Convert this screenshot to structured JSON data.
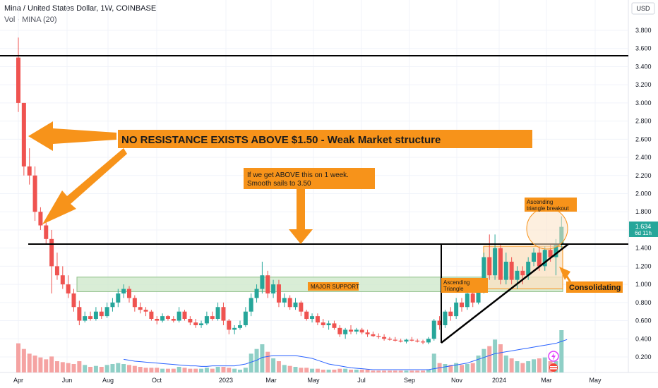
{
  "header": {
    "title": "Mina / United States Dollar, 1W, COINBASE",
    "volume": "Vol · MINA (20)"
  },
  "currency_label": "USD",
  "price_badge": {
    "price": "1.634",
    "countdown": "6d 11h"
  },
  "colors": {
    "up": "#26a69a",
    "down": "#ef5350",
    "vol_up": "#8fcfc6",
    "vol_down": "#f5a3a2",
    "ma": "#2962ff",
    "annotation": "#f7931a",
    "support_fill": "#cfe9cc",
    "triangle_fill": "#fbe0c0"
  },
  "chart_data": {
    "type": "candlestick",
    "symbol": "MINA/USD",
    "interval": "1W",
    "ylim": [
      0.0,
      3.9
    ],
    "y_ticks": [
      "0.200",
      "0.400",
      "0.600",
      "0.800",
      "1.000",
      "1.200",
      "1.400",
      "1.600",
      "1.800",
      "2.000",
      "2.200",
      "2.400",
      "2.600",
      "2.800",
      "3.000",
      "3.200",
      "3.400",
      "3.600",
      "3.800"
    ],
    "x_ticks": [
      "Apr",
      "Jun",
      "Aug",
      "Oct",
      "2023",
      "Mar",
      "May",
      "Jul",
      "Sep",
      "Nov",
      "2024",
      "Mar",
      "May"
    ],
    "candles": [
      [
        3.5,
        3.72,
        2.9,
        3.0,
        0.31
      ],
      [
        3.0,
        3.0,
        2.2,
        2.3,
        0.25
      ],
      [
        2.3,
        2.5,
        2.1,
        2.2,
        0.2
      ],
      [
        2.2,
        2.3,
        1.7,
        1.8,
        0.18
      ],
      [
        1.8,
        1.85,
        1.6,
        1.65,
        0.16
      ],
      [
        1.65,
        1.7,
        1.45,
        1.5,
        0.14
      ],
      [
        1.5,
        1.6,
        0.9,
        1.2,
        0.17
      ],
      [
        1.2,
        1.35,
        1.05,
        1.1,
        0.12
      ],
      [
        1.1,
        1.2,
        0.95,
        1.0,
        0.11
      ],
      [
        1.0,
        1.1,
        0.85,
        0.9,
        0.1
      ],
      [
        0.9,
        0.95,
        0.7,
        0.75,
        0.09
      ],
      [
        0.75,
        0.82,
        0.55,
        0.6,
        0.12
      ],
      [
        0.6,
        0.7,
        0.58,
        0.65,
        0.08
      ],
      [
        0.65,
        0.7,
        0.6,
        0.62,
        0.06
      ],
      [
        0.62,
        0.75,
        0.6,
        0.7,
        0.07
      ],
      [
        0.7,
        0.75,
        0.62,
        0.65,
        0.06
      ],
      [
        0.65,
        0.8,
        0.63,
        0.75,
        0.08
      ],
      [
        0.75,
        0.85,
        0.7,
        0.8,
        0.09
      ],
      [
        0.8,
        0.95,
        0.75,
        0.9,
        0.1
      ],
      [
        0.9,
        1.0,
        0.85,
        0.95,
        0.09
      ],
      [
        0.95,
        0.98,
        0.8,
        0.85,
        0.08
      ],
      [
        0.85,
        0.88,
        0.7,
        0.75,
        0.07
      ],
      [
        0.75,
        0.8,
        0.68,
        0.72,
        0.06
      ],
      [
        0.72,
        0.75,
        0.65,
        0.7,
        0.05
      ],
      [
        0.7,
        0.72,
        0.6,
        0.62,
        0.05
      ],
      [
        0.62,
        0.65,
        0.56,
        0.6,
        0.05
      ],
      [
        0.6,
        0.68,
        0.58,
        0.65,
        0.04
      ],
      [
        0.65,
        0.66,
        0.6,
        0.62,
        0.04
      ],
      [
        0.62,
        0.65,
        0.58,
        0.6,
        0.04
      ],
      [
        0.6,
        0.75,
        0.58,
        0.7,
        0.06
      ],
      [
        0.7,
        0.72,
        0.6,
        0.62,
        0.05
      ],
      [
        0.62,
        0.65,
        0.55,
        0.58,
        0.04
      ],
      [
        0.58,
        0.62,
        0.52,
        0.55,
        0.04
      ],
      [
        0.55,
        0.6,
        0.52,
        0.57,
        0.04
      ],
      [
        0.57,
        0.7,
        0.55,
        0.65,
        0.05
      ],
      [
        0.65,
        0.7,
        0.6,
        0.62,
        0.04
      ],
      [
        0.62,
        0.8,
        0.6,
        0.75,
        0.06
      ],
      [
        0.75,
        0.8,
        0.55,
        0.6,
        0.06
      ],
      [
        0.6,
        0.62,
        0.45,
        0.5,
        0.05
      ],
      [
        0.5,
        0.55,
        0.45,
        0.52,
        0.04
      ],
      [
        0.52,
        0.6,
        0.5,
        0.55,
        0.03
      ],
      [
        0.55,
        0.75,
        0.53,
        0.7,
        0.05
      ],
      [
        0.7,
        0.9,
        0.65,
        0.85,
        0.2
      ],
      [
        0.85,
        1.0,
        0.8,
        0.95,
        0.25
      ],
      [
        0.95,
        1.25,
        0.9,
        1.1,
        0.3
      ],
      [
        1.1,
        1.15,
        0.85,
        0.9,
        0.22
      ],
      [
        0.9,
        1.05,
        0.85,
        1.0,
        0.15
      ],
      [
        1.0,
        1.05,
        0.75,
        0.8,
        0.12
      ],
      [
        0.8,
        0.9,
        0.75,
        0.85,
        0.08
      ],
      [
        0.85,
        0.88,
        0.72,
        0.75,
        0.07
      ],
      [
        0.75,
        0.85,
        0.72,
        0.8,
        0.06
      ],
      [
        0.8,
        0.82,
        0.65,
        0.7,
        0.05
      ],
      [
        0.7,
        0.72,
        0.6,
        0.62,
        0.05
      ],
      [
        0.62,
        0.68,
        0.58,
        0.65,
        0.04
      ],
      [
        0.65,
        0.68,
        0.55,
        0.58,
        0.04
      ],
      [
        0.58,
        0.62,
        0.52,
        0.55,
        0.03
      ],
      [
        0.55,
        0.6,
        0.5,
        0.57,
        0.03
      ],
      [
        0.57,
        0.6,
        0.5,
        0.52,
        0.03
      ],
      [
        0.52,
        0.55,
        0.42,
        0.45,
        0.04
      ],
      [
        0.45,
        0.52,
        0.4,
        0.5,
        0.04
      ],
      [
        0.5,
        0.55,
        0.45,
        0.48,
        0.03
      ],
      [
        0.48,
        0.52,
        0.45,
        0.5,
        0.03
      ],
      [
        0.5,
        0.52,
        0.45,
        0.47,
        0.03
      ],
      [
        0.47,
        0.5,
        0.42,
        0.45,
        0.03
      ],
      [
        0.45,
        0.48,
        0.42,
        0.43,
        0.02
      ],
      [
        0.43,
        0.46,
        0.4,
        0.42,
        0.02
      ],
      [
        0.42,
        0.45,
        0.38,
        0.4,
        0.02
      ],
      [
        0.4,
        0.42,
        0.38,
        0.39,
        0.02
      ],
      [
        0.39,
        0.42,
        0.37,
        0.38,
        0.02
      ],
      [
        0.38,
        0.4,
        0.36,
        0.37,
        0.02
      ],
      [
        0.37,
        0.4,
        0.35,
        0.39,
        0.02
      ],
      [
        0.39,
        0.42,
        0.37,
        0.38,
        0.02
      ],
      [
        0.38,
        0.4,
        0.36,
        0.37,
        0.02
      ],
      [
        0.37,
        0.39,
        0.34,
        0.36,
        0.02
      ],
      [
        0.36,
        0.42,
        0.34,
        0.4,
        0.03
      ],
      [
        0.4,
        0.62,
        0.38,
        0.6,
        0.2
      ],
      [
        0.6,
        0.65,
        0.5,
        0.55,
        0.1
      ],
      [
        0.55,
        0.72,
        0.52,
        0.7,
        0.09
      ],
      [
        0.7,
        0.75,
        0.6,
        0.65,
        0.08
      ],
      [
        0.65,
        0.85,
        0.62,
        0.8,
        0.1
      ],
      [
        0.8,
        0.85,
        0.7,
        0.75,
        0.08
      ],
      [
        0.75,
        0.95,
        0.72,
        0.9,
        0.09
      ],
      [
        0.9,
        0.92,
        0.75,
        0.8,
        0.1
      ],
      [
        0.8,
        1.0,
        0.78,
        0.95,
        0.18
      ],
      [
        0.95,
        1.35,
        0.9,
        1.3,
        0.25
      ],
      [
        1.3,
        1.55,
        1.05,
        1.1,
        0.28
      ],
      [
        1.1,
        1.55,
        1.05,
        1.4,
        0.35
      ],
      [
        1.4,
        1.45,
        1.0,
        1.05,
        0.3
      ],
      [
        1.05,
        1.35,
        1.0,
        1.25,
        0.18
      ],
      [
        1.25,
        1.3,
        1.0,
        1.05,
        0.15
      ],
      [
        1.05,
        1.2,
        0.95,
        1.15,
        0.12
      ],
      [
        1.15,
        1.2,
        1.0,
        1.1,
        0.1
      ],
      [
        1.1,
        1.3,
        1.05,
        1.25,
        0.12
      ],
      [
        1.25,
        1.4,
        1.2,
        1.35,
        0.14
      ],
      [
        1.35,
        1.42,
        1.15,
        1.2,
        0.15
      ],
      [
        1.2,
        1.42,
        1.15,
        1.38,
        0.16
      ],
      [
        1.38,
        1.45,
        1.25,
        1.3,
        0.12
      ],
      [
        1.3,
        1.5,
        1.1,
        1.45,
        0.12
      ],
      [
        1.45,
        1.75,
        1.4,
        1.634,
        0.45
      ]
    ],
    "volume_ma": [
      0,
      0,
      0,
      0,
      0,
      0,
      0,
      0,
      0,
      0,
      0,
      0,
      0,
      0,
      0,
      0,
      0,
      0,
      0,
      0.14,
      0.13,
      0.12,
      0.115,
      0.11,
      0.105,
      0.1,
      0.095,
      0.09,
      0.085,
      0.08,
      0.075,
      0.07,
      0.07,
      0.065,
      0.065,
      0.07,
      0.07,
      0.07,
      0.07,
      0.07,
      0.08,
      0.09,
      0.11,
      0.13,
      0.16,
      0.17,
      0.18,
      0.18,
      0.18,
      0.18,
      0.18,
      0.17,
      0.16,
      0.15,
      0.13,
      0.11,
      0.09,
      0.08,
      0.07,
      0.06,
      0.05,
      0.045,
      0.04,
      0.035,
      0.03,
      0.03,
      0.03,
      0.03,
      0.03,
      0.03,
      0.03,
      0.03,
      0.03,
      0.03,
      0.03,
      0.04,
      0.05,
      0.06,
      0.07,
      0.08,
      0.09,
      0.1,
      0.12,
      0.14,
      0.16,
      0.18,
      0.2,
      0.21,
      0.22,
      0.23,
      0.24,
      0.25,
      0.26,
      0.27,
      0.28,
      0.29,
      0.3,
      0.31,
      0.33,
      0.35
    ],
    "horizontal_levels": [
      3.5,
      1.42
    ],
    "support_zone": [
      0.92,
      1.08
    ],
    "annotations": {
      "resistance": "NO RESISTANCE EXISTS ABOVE $1.50 - Weak Market structure",
      "target_line1": "If we get ABOVE this on 1 week.",
      "target_line2": "Smooth sails to  3.50",
      "major_support": "MAJOR SUPPORT",
      "asc_tri_1": "Ascending",
      "asc_tri_2": "Triangle",
      "breakout_1": "Ascending",
      "breakout_2": "triangle breakout",
      "consolidating": "Consolidating"
    }
  }
}
